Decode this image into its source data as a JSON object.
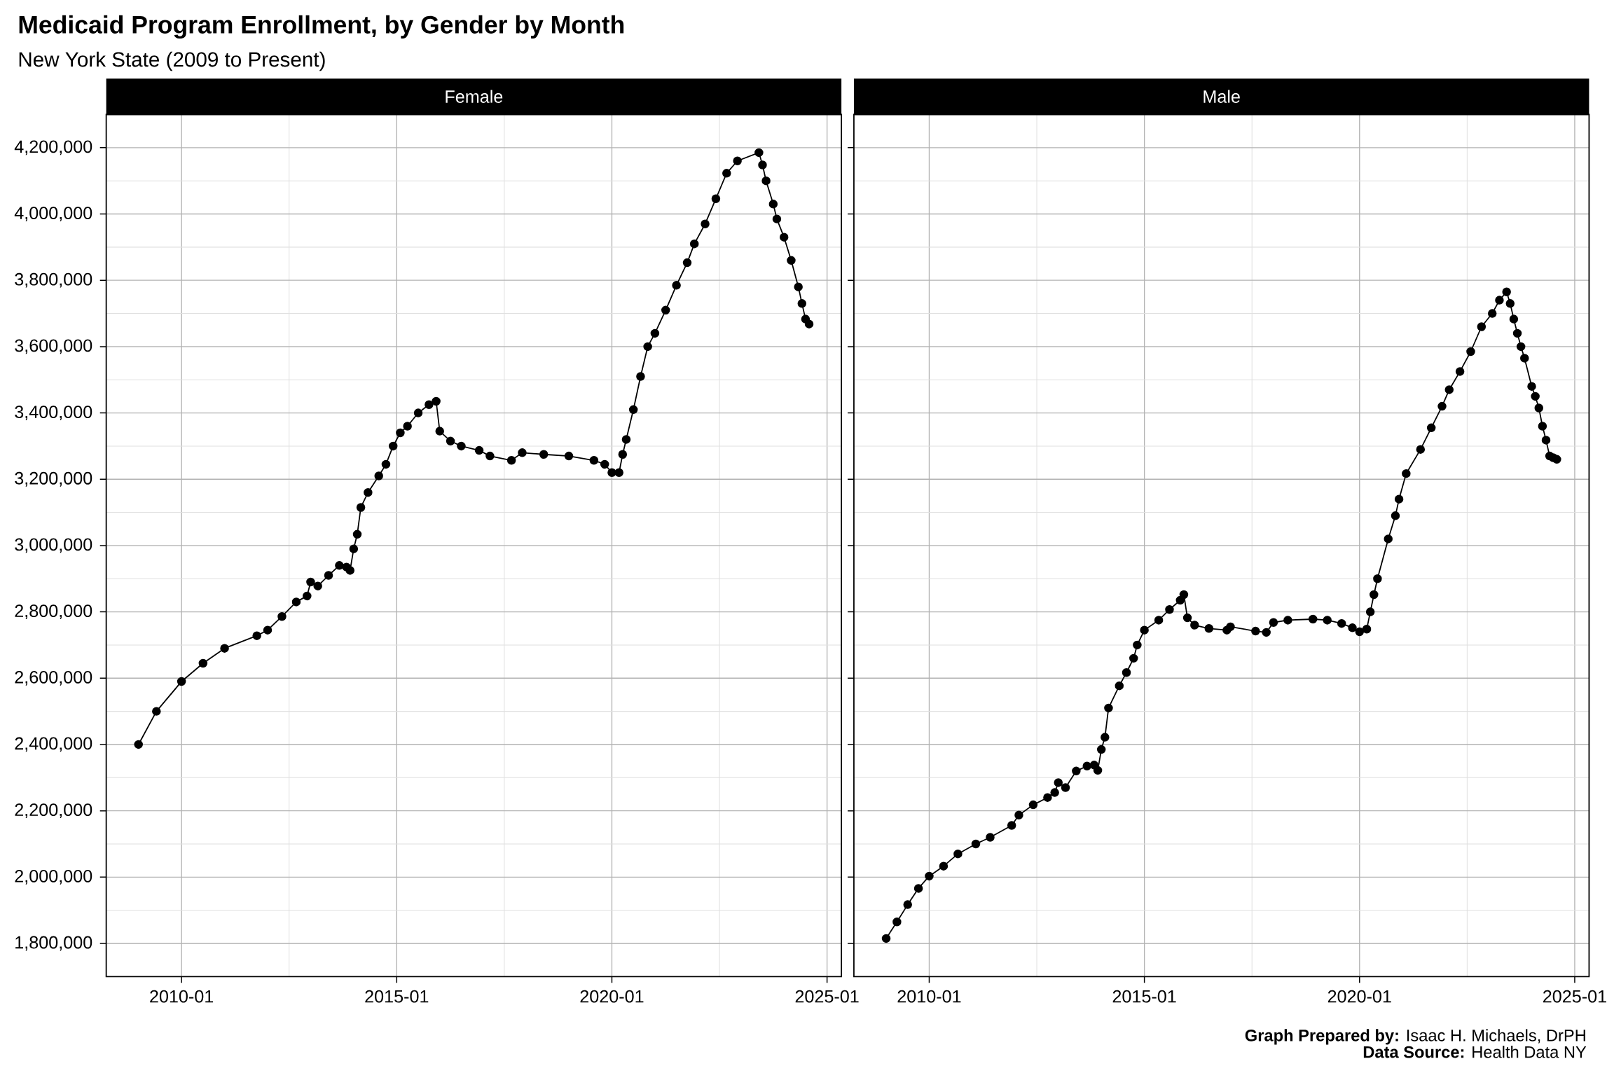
{
  "chart_data": [
    {
      "type": "line",
      "title": "Medicaid Program Enrollment, by Gender by Month",
      "subtitle": "New York State (2009 to Present)",
      "grid": true,
      "marker": "circle",
      "line_style": "solid",
      "xlim": [
        "2008-04",
        "2025-05"
      ],
      "ylim": [
        1700000,
        4300000
      ],
      "xticks": [
        "2010-01",
        "2015-01",
        "2020-01",
        "2025-01"
      ],
      "yticks": [
        {
          "value": 1800000,
          "label": "1,800,000"
        },
        {
          "value": 2000000,
          "label": "2,000,000"
        },
        {
          "value": 2200000,
          "label": "2,200,000"
        },
        {
          "value": 2400000,
          "label": "2,400,000"
        },
        {
          "value": 2600000,
          "label": "2,600,000"
        },
        {
          "value": 2800000,
          "label": "2,800,000"
        },
        {
          "value": 3000000,
          "label": "3,000,000"
        },
        {
          "value": 3200000,
          "label": "3,200,000"
        },
        {
          "value": 3400000,
          "label": "3,400,000"
        },
        {
          "value": 3600000,
          "label": "3,600,000"
        },
        {
          "value": 3800000,
          "label": "3,800,000"
        },
        {
          "value": 4000000,
          "label": "4,000,000"
        },
        {
          "value": 4200000,
          "label": "4,200,000"
        }
      ],
      "x": [
        "2009-01",
        "2009-06",
        "2010-01",
        "2010-07",
        "2011-01",
        "2011-10",
        "2012-01",
        "2012-05",
        "2012-09",
        "2012-12",
        "2013-01",
        "2013-03",
        "2013-06",
        "2013-09",
        "2013-11",
        "2013-12",
        "2014-01",
        "2014-02",
        "2014-03",
        "2014-05",
        "2014-08",
        "2014-10",
        "2014-12",
        "2015-02",
        "2015-04",
        "2015-07",
        "2015-10",
        "2015-12",
        "2016-01",
        "2016-04",
        "2016-07",
        "2016-12",
        "2017-03",
        "2017-09",
        "2017-12",
        "2018-06",
        "2019-01",
        "2019-08",
        "2019-11",
        "2020-01",
        "2020-03",
        "2020-04",
        "2020-05",
        "2020-07",
        "2020-09",
        "2020-11",
        "2021-01",
        "2021-04",
        "2021-07",
        "2021-10",
        "2021-12",
        "2022-03",
        "2022-06",
        "2022-09",
        "2022-12",
        "2023-06",
        "2023-07",
        "2023-08",
        "2023-10",
        "2023-11",
        "2024-01",
        "2024-03",
        "2024-05",
        "2024-06",
        "2024-07",
        "2024-08"
      ],
      "series": [
        {
          "name": "Female",
          "color": "#000000",
          "values": [
            2400000,
            2500000,
            2590000,
            2645000,
            2690000,
            2728000,
            2745000,
            2786000,
            2830000,
            2848000,
            2890000,
            2878000,
            2910000,
            2940000,
            2935000,
            2925000,
            2990000,
            3034000,
            3115000,
            3160000,
            3210000,
            3245000,
            3300000,
            3340000,
            3360000,
            3400000,
            3425000,
            3435000,
            3345000,
            3315000,
            3300000,
            3287000,
            3270000,
            3257000,
            3280000,
            3275000,
            3270000,
            3257000,
            3245000,
            3220000,
            3220000,
            3275000,
            3320000,
            3410000,
            3510000,
            3600000,
            3640000,
            3710000,
            3785000,
            3853000,
            3910000,
            3970000,
            4046000,
            4123000,
            4160000,
            4185000,
            4148000,
            4100000,
            4030000,
            3985000,
            3930000,
            3860000,
            3780000,
            3730000,
            3683000,
            3668000
          ]
        }
      ]
    },
    {
      "type": "line",
      "grid": true,
      "marker": "circle",
      "line_style": "solid",
      "tick_labels": "x",
      "annotations": [
        "**Graph Prepared by:** Isaac H. Michaels, DrPH",
        "**Data Source:** Health Data NY"
      ],
      "xlim": [
        "2008-04",
        "2025-05"
      ],
      "ylim": [
        1700000,
        4300000
      ],
      "xticks": [
        "2010-01",
        "2015-01",
        "2020-01",
        "2025-01"
      ],
      "yticks": [
        {
          "value": 1800000,
          "label": null
        },
        {
          "value": 2000000,
          "label": null
        },
        {
          "value": 2200000,
          "label": null
        },
        {
          "value": 2400000,
          "label": null
        },
        {
          "value": 2600000,
          "label": null
        },
        {
          "value": 2800000,
          "label": null
        },
        {
          "value": 3000000,
          "label": null
        },
        {
          "value": 3200000,
          "label": null
        },
        {
          "value": 3400000,
          "label": null
        },
        {
          "value": 3600000,
          "label": null
        },
        {
          "value": 3800000,
          "label": null
        },
        {
          "value": 4000000,
          "label": null
        },
        {
          "value": 4200000,
          "label": null
        }
      ],
      "x": [
        "2009-01",
        "2009-04",
        "2009-07",
        "2009-10",
        "2010-01",
        "2010-05",
        "2010-09",
        "2011-02",
        "2011-06",
        "2011-12",
        "2012-02",
        "2012-06",
        "2012-10",
        "2012-12",
        "2013-01",
        "2013-03",
        "2013-06",
        "2013-09",
        "2013-11",
        "2013-12",
        "2014-01",
        "2014-02",
        "2014-03",
        "2014-06",
        "2014-08",
        "2014-10",
        "2014-11",
        "2015-01",
        "2015-05",
        "2015-08",
        "2015-11",
        "2015-12",
        "2016-01",
        "2016-03",
        "2016-07",
        "2016-12",
        "2017-01",
        "2017-08",
        "2017-11",
        "2018-01",
        "2018-05",
        "2018-12",
        "2019-04",
        "2019-08",
        "2019-11",
        "2020-01",
        "2020-03",
        "2020-04",
        "2020-05",
        "2020-06",
        "2020-09",
        "2020-11",
        "2020-12",
        "2021-02",
        "2021-06",
        "2021-09",
        "2021-12",
        "2022-02",
        "2022-05",
        "2022-08",
        "2022-11",
        "2023-02",
        "2023-04",
        "2023-06",
        "2023-07",
        "2023-08",
        "2023-09",
        "2023-10",
        "2023-11",
        "2024-01",
        "2024-02",
        "2024-03",
        "2024-04",
        "2024-05",
        "2024-06",
        "2024-07",
        "2024-08"
      ],
      "series": [
        {
          "name": "Male",
          "color": "#000000",
          "values": [
            1815000,
            1865000,
            1917000,
            1966000,
            2003000,
            2033000,
            2070000,
            2100000,
            2120000,
            2156000,
            2187000,
            2218000,
            2240000,
            2255000,
            2285000,
            2270000,
            2320000,
            2335000,
            2338000,
            2322000,
            2385000,
            2422000,
            2510000,
            2577000,
            2617000,
            2660000,
            2700000,
            2745000,
            2775000,
            2807000,
            2835000,
            2852000,
            2782000,
            2760000,
            2750000,
            2745000,
            2755000,
            2742000,
            2738000,
            2768000,
            2775000,
            2778000,
            2775000,
            2765000,
            2752000,
            2740000,
            2748000,
            2800000,
            2852000,
            2900000,
            3020000,
            3090000,
            3140000,
            3217000,
            3290000,
            3355000,
            3420000,
            3470000,
            3525000,
            3585000,
            3660000,
            3700000,
            3740000,
            3765000,
            3730000,
            3683000,
            3640000,
            3600000,
            3565000,
            3480000,
            3450000,
            3415000,
            3360000,
            3318000,
            3270000,
            3265000,
            3260000
          ]
        }
      ]
    }
  ]
}
